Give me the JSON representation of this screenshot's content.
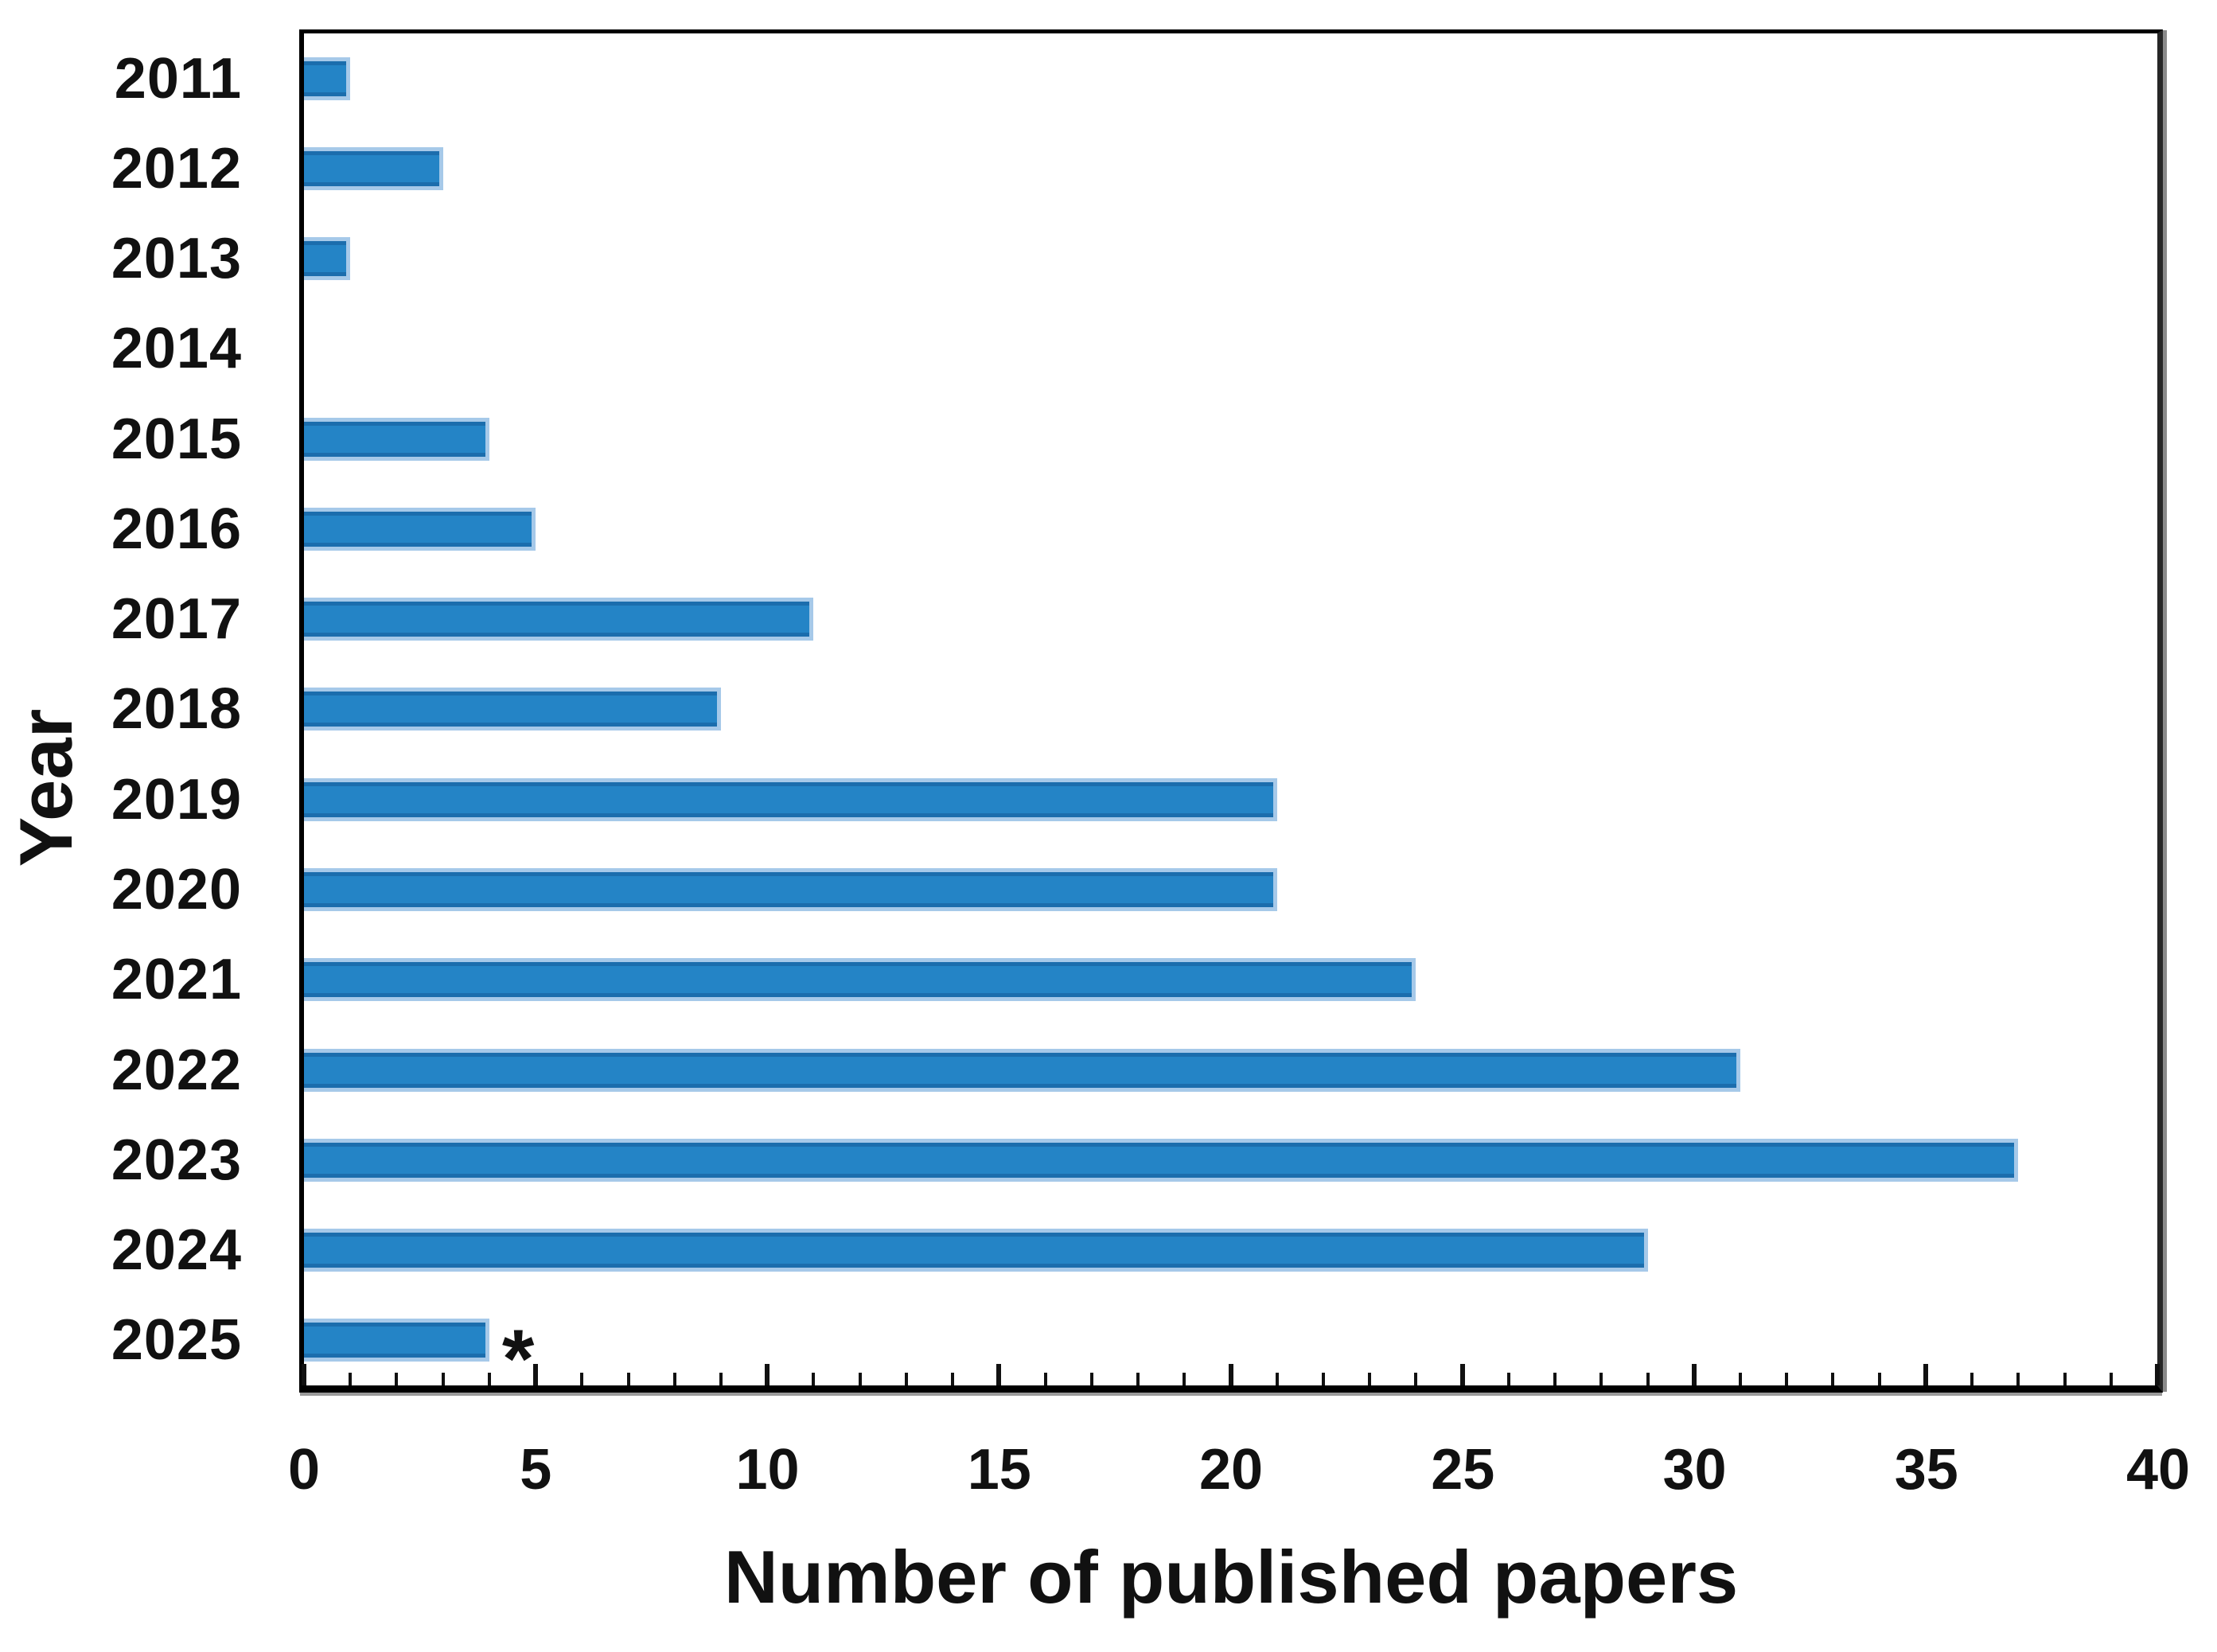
{
  "chart_data": {
    "type": "bar",
    "orientation": "horizontal",
    "categories": [
      "2011",
      "2012",
      "2013",
      "2014",
      "2015",
      "2016",
      "2017",
      "2018",
      "2019",
      "2020",
      "2021",
      "2022",
      "2023",
      "2024",
      "2025"
    ],
    "values": [
      1,
      3,
      1,
      0,
      4,
      5,
      11,
      9,
      21,
      21,
      24,
      31,
      37,
      29,
      4
    ],
    "xlabel": "Number of published papers",
    "ylabel": "Year",
    "xlim": [
      0,
      40
    ],
    "x_major_ticks": [
      0,
      5,
      10,
      15,
      20,
      25,
      30,
      35,
      40
    ],
    "x_minor_tick_step": 1,
    "grid": false,
    "annotation": {
      "category": "2025",
      "text": "*"
    },
    "colors": {
      "bar_fill": "#2484C6",
      "bar_edge_light": "#A6C9E9",
      "bar_edge_dark": "#1B6DAD",
      "axis": "#000000",
      "text": "#111111"
    }
  }
}
